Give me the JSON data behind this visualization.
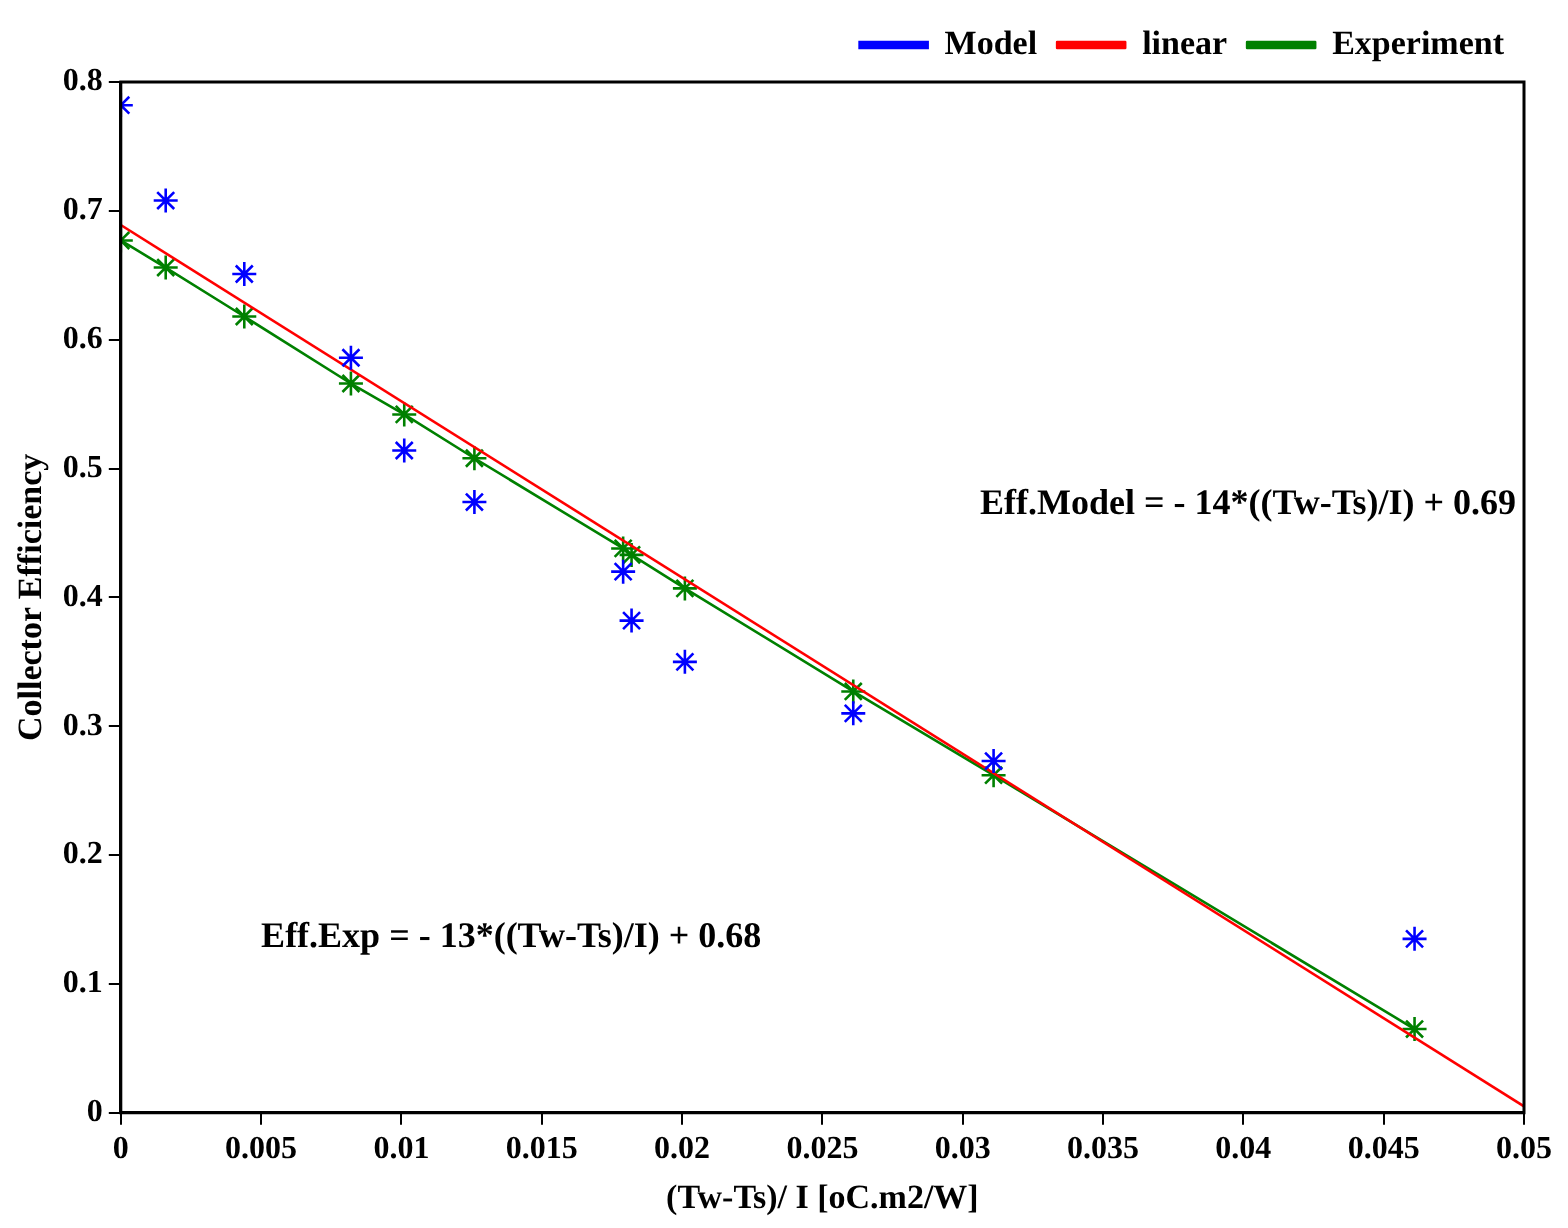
{
  "chart_data": {
    "type": "scatter",
    "xlabel": "(Tw-Ts)/ I [oC.m2/W]",
    "ylabel": "Collector Efficiency",
    "xlim": [
      0,
      0.05
    ],
    "xticks": [
      0,
      0.005,
      0.01,
      0.015,
      0.02,
      0.025,
      0.03,
      0.035,
      0.04,
      0.045,
      0.05
    ],
    "ylim": [
      0,
      0.8
    ],
    "yticks": [
      0,
      0.1,
      0.2,
      0.3,
      0.4,
      0.5,
      0.6,
      0.7,
      0.8
    ],
    "grid": false,
    "legend": "top right",
    "series": [
      {
        "name": "Model",
        "type": "scatter",
        "marker": "cross",
        "color": "#0000ff",
        "x": [
          0,
          0.0016,
          0.0044,
          0.0082,
          0.0101,
          0.0126,
          0.0179,
          0.0182,
          0.0201,
          0.0261,
          0.0311,
          0.0461
        ],
        "values": [
          0.782,
          0.708,
          0.651,
          0.586,
          0.514,
          0.474,
          0.42,
          0.382,
          0.35,
          0.31,
          0.273,
          0.135
        ]
      },
      {
        "name": "linear",
        "type": "line",
        "marker": "none",
        "color": "#ff0000",
        "x": [
          0,
          0.05
        ],
        "values": [
          0.689,
          0.005
        ]
      },
      {
        "name": "Experiment",
        "type": "line",
        "marker": "cross",
        "color": "#008000",
        "x": [
          0,
          0.0016,
          0.0044,
          0.0082,
          0.0101,
          0.0126,
          0.0179,
          0.0182,
          0.0201,
          0.0261,
          0.0311,
          0.0461
        ],
        "values": [
          0.677,
          0.656,
          0.618,
          0.566,
          0.542,
          0.508,
          0.438,
          0.433,
          0.407,
          0.327,
          0.262,
          0.065
        ]
      }
    ],
    "annotations": [
      "Eff.Model = - 14*((Tw-Ts)/I) + 0.69",
      "Eff.Exp = - 13*((Tw-Ts)/I) + 0.68"
    ]
  }
}
